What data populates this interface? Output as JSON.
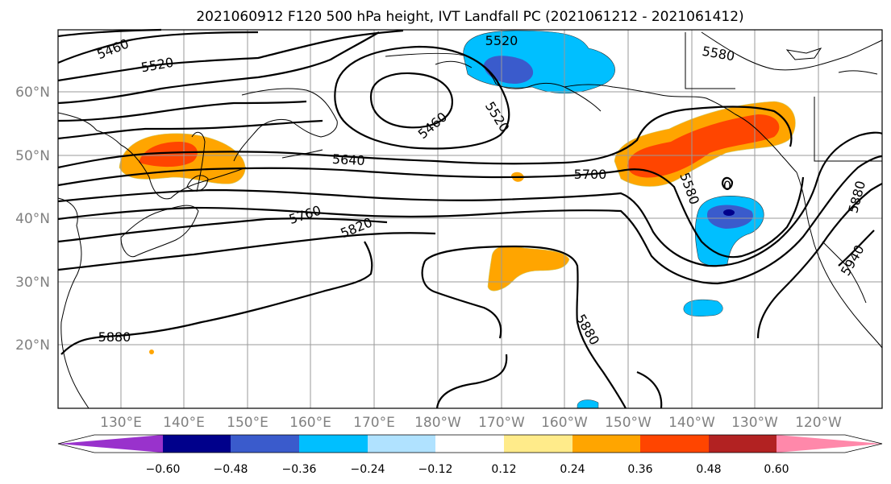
{
  "title": "2021060912 F120 500 hPa height, IVT Landfall PC (2021061212 - 2021061412)",
  "lat_labels": [
    "60°N",
    "50°N",
    "40°N",
    "30°N",
    "20°N"
  ],
  "lon_labels": [
    "130°E",
    "140°E",
    "150°E",
    "160°E",
    "170°E",
    "180°W",
    "170°W",
    "160°W",
    "150°W",
    "140°W",
    "130°W",
    "120°W"
  ],
  "contour_labels": [
    "5460",
    "5520",
    "5520",
    "5520",
    "5460",
    "5580",
    "5640",
    "5700",
    "5580",
    "5760",
    "5820",
    "5880",
    "5880",
    "5880",
    "5940",
    "0"
  ],
  "colorbar": {
    "ticks": [
      "−0.60",
      "−0.48",
      "−0.36",
      "−0.24",
      "−0.12",
      "0.12",
      "0.24",
      "0.36",
      "0.48",
      "0.60"
    ],
    "colors": [
      "#9932cc",
      "#00008b",
      "#3a5bcc",
      "#00bfff",
      "#b0e2ff",
      "#ffffff",
      "#ffeb8a",
      "#ffa500",
      "#ff4500",
      "#b22222",
      "#ff88aa"
    ]
  }
}
